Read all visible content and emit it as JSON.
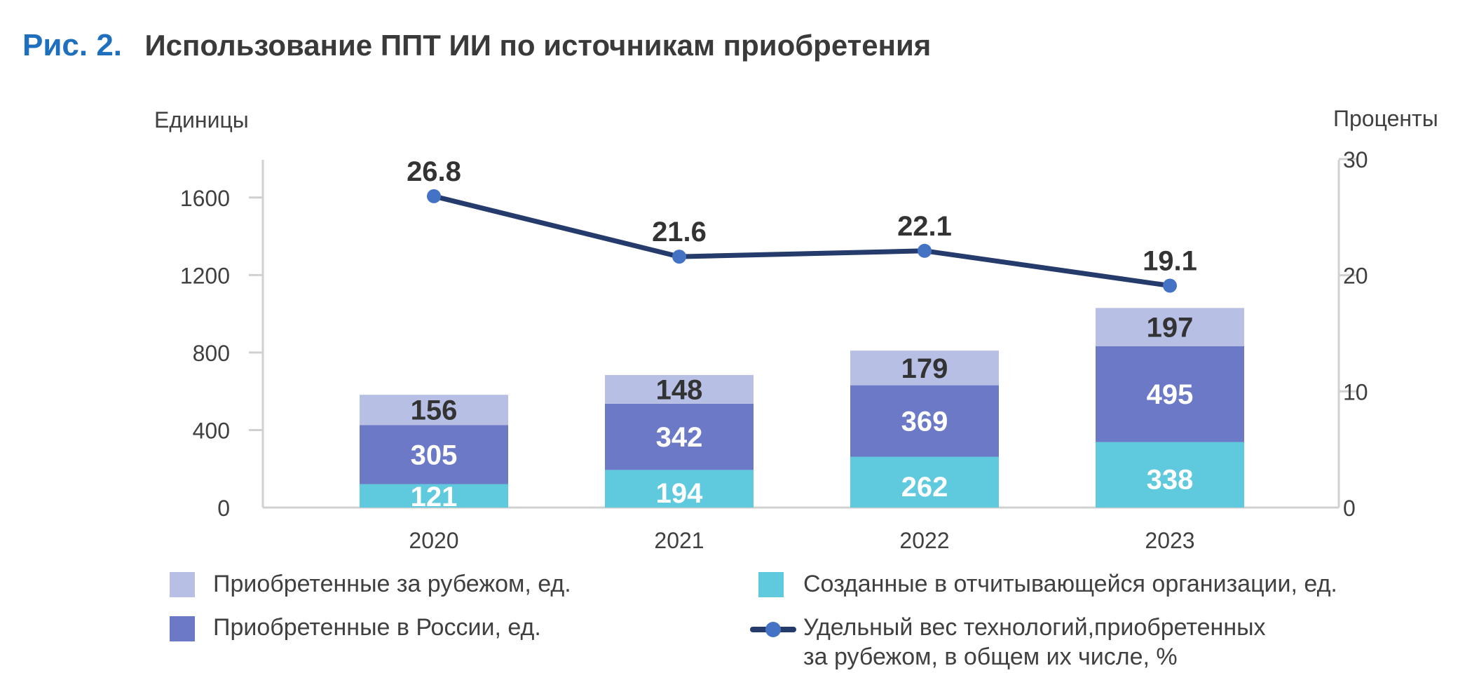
{
  "figure": {
    "label": "Рис. 2.",
    "title": "Использование ППТ ИИ по источникам приобретения"
  },
  "chart_data": {
    "type": "bar",
    "stacked": true,
    "categories": [
      "2020",
      "2021",
      "2022",
      "2023"
    ],
    "series": [
      {
        "name": "Созданные в отчитывающейся организации, ед.",
        "values": [
          121,
          194,
          262,
          338
        ],
        "color": "#5fc9dd",
        "label_color": "#ffffff",
        "axis": "left"
      },
      {
        "name": "Приобретенные в России, ед.",
        "values": [
          305,
          342,
          369,
          495
        ],
        "color": "#6b79c6",
        "label_color": "#ffffff",
        "axis": "left"
      },
      {
        "name": "Приобретенные за рубежом, ед.",
        "values": [
          156,
          148,
          179,
          197
        ],
        "color": "#b8bfe5",
        "label_color": "#333333",
        "axis": "left"
      }
    ],
    "line_series": {
      "name": "Удельный вес технологий,приобретенных за рубежом, в общем их числе, %",
      "values": [
        26.8,
        21.6,
        22.1,
        19.1
      ],
      "labels": [
        "26.8",
        "21.6",
        "22.1",
        "19.1"
      ],
      "color": "#243b6b",
      "marker_color": "#4472c4",
      "axis": "right"
    },
    "y_left": {
      "label": "Единицы",
      "ylim": [
        0,
        1800
      ],
      "ticks": [
        0,
        400,
        800,
        1200,
        1600
      ]
    },
    "y_right": {
      "label": "Проценты",
      "ylim": [
        0,
        30
      ],
      "ticks": [
        0,
        10,
        20,
        30
      ]
    },
    "grid": false,
    "legend_position": "bottom"
  },
  "legend": {
    "foreign": "Приобретенные за рубежом, ед.",
    "russia": "Приобретенные в России, ед.",
    "created": "Созданные в отчитывающейся организации, ед.",
    "share_line1": "Удельный вес технологий,приобретенных",
    "share_line2": "за рубежом, в общем их числе, %"
  }
}
